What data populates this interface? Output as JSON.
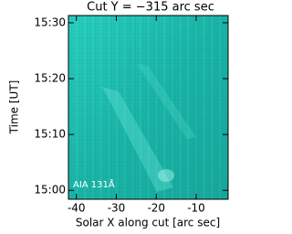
{
  "chart_data": {
    "type": "image",
    "title": "Cut Y = −315 arc sec",
    "x_label": "Solar X along cut [arc sec]",
    "y_label": "Time [UT]",
    "annotation": "AIA 131Å",
    "xlim": [
      -42,
      -2
    ],
    "xticks": [
      -40,
      -30,
      -20,
      -10
    ],
    "ylim": [
      898.4,
      931.3
    ],
    "yticks": [
      {
        "value": 900,
        "label": "15:00"
      },
      {
        "value": 910,
        "label": "15:10"
      },
      {
        "value": 920,
        "label": "15:20"
      },
      {
        "value": 930,
        "label": "15:30"
      }
    ]
  }
}
